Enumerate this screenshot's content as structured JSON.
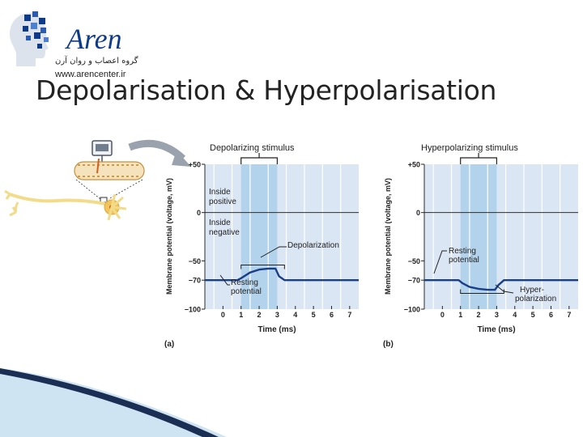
{
  "logo": {
    "name": "Aren",
    "subtitle": "گروه اعصاب و روان آرن",
    "url": "www.arencenter.ir"
  },
  "slide_title": "Depolarisation & Hyperpolarisation",
  "colors": {
    "panel_bg": "#dbe6f4",
    "stimulus_band": "#b3d3ec",
    "trace": "#1a3f8a",
    "grid": "#ffffff",
    "arrow": "#9aa3ad",
    "neuron": "#f2dc8a",
    "axon_membrane": "#f0c27a"
  },
  "chart_data": [
    {
      "type": "line",
      "panel_label": "(a)",
      "title": "Depolarizing stimulus",
      "xlabel": "Time (ms)",
      "ylabel": "Membrane potential (voltage, mV)",
      "xlim": [
        -1,
        7.5
      ],
      "ylim": [
        -100,
        50
      ],
      "x_ticks": [
        0,
        1,
        2,
        3,
        4,
        5,
        6,
        7
      ],
      "y_ticks": [
        50,
        0,
        -50,
        -70,
        -100
      ],
      "y_tick_labels": [
        "+50",
        "0",
        "−50",
        "−70",
        "−100"
      ],
      "stimulus_window": [
        1.0,
        3.0
      ],
      "region_labels": [
        "Inside positive",
        "Inside negative"
      ],
      "annotations": [
        "Depolarization",
        "Resting potential"
      ],
      "series": [
        {
          "x": [
            -1,
            0.8,
            1.0,
            1.5,
            2.0,
            2.5,
            2.9,
            3.1,
            3.4,
            7.5
          ],
          "y": [
            -70,
            -70,
            -68,
            -62,
            -59,
            -58,
            -58,
            -66,
            -70,
            -70
          ]
        }
      ]
    },
    {
      "type": "line",
      "panel_label": "(b)",
      "title": "Hyperpolarizing stimulus",
      "xlabel": "Time (ms)",
      "ylabel": "Membrane potential (voltage, mV)",
      "xlim": [
        -1,
        7.5
      ],
      "ylim": [
        -100,
        50
      ],
      "x_ticks": [
        0,
        1,
        2,
        3,
        4,
        5,
        6,
        7
      ],
      "y_ticks": [
        50,
        0,
        -50,
        -70,
        -100
      ],
      "y_tick_labels": [
        "+50",
        "0",
        "−50",
        "−70",
        "−100"
      ],
      "stimulus_window": [
        1.0,
        3.0
      ],
      "annotations": [
        "Resting potential",
        "Hyper-polarization"
      ],
      "annotation_lines": [
        "Hyper-",
        "polarization"
      ],
      "series": [
        {
          "x": [
            -1,
            0.9,
            1.1,
            1.5,
            2.0,
            2.5,
            2.9,
            3.1,
            3.4,
            7.5
          ],
          "y": [
            -70,
            -70,
            -73,
            -77,
            -79,
            -80,
            -80,
            -75,
            -70,
            -70
          ]
        }
      ]
    }
  ]
}
